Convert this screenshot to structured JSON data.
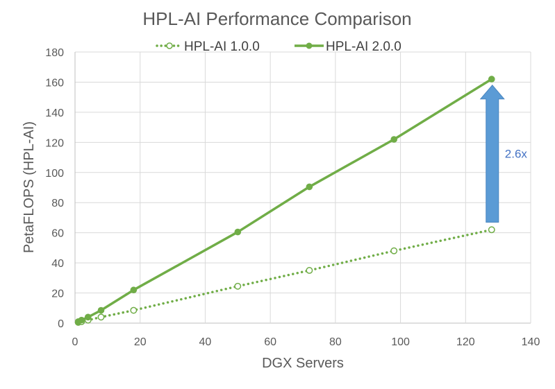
{
  "chart_data": {
    "type": "line",
    "title": "HPL-AI Performance Comparison",
    "xlabel": "DGX Servers",
    "ylabel": "PetaFLOPS (HPL-AI)",
    "xlim": [
      0,
      140
    ],
    "ylim": [
      0,
      180
    ],
    "xticks": [
      0,
      20,
      40,
      60,
      80,
      100,
      120,
      140
    ],
    "yticks": [
      0,
      20,
      40,
      60,
      80,
      100,
      120,
      140,
      160,
      180
    ],
    "grid": true,
    "legend_position": "top",
    "series": [
      {
        "name": "HPL-AI 1.0.0",
        "style": "dotted",
        "marker": "open-circle",
        "color": "#70ad47",
        "points": [
          {
            "x": 1,
            "y": 0.5
          },
          {
            "x": 2,
            "y": 1
          },
          {
            "x": 4,
            "y": 2
          },
          {
            "x": 8,
            "y": 4
          },
          {
            "x": 18,
            "y": 8.5
          },
          {
            "x": 50,
            "y": 24.5
          },
          {
            "x": 72,
            "y": 35
          },
          {
            "x": 98,
            "y": 48
          },
          {
            "x": 128,
            "y": 62
          }
        ]
      },
      {
        "name": "HPL-AI 2.0.0",
        "style": "solid",
        "marker": "filled-circle",
        "color": "#70ad47",
        "points": [
          {
            "x": 1,
            "y": 1
          },
          {
            "x": 2,
            "y": 2
          },
          {
            "x": 4,
            "y": 4
          },
          {
            "x": 8,
            "y": 8.5
          },
          {
            "x": 18,
            "y": 22
          },
          {
            "x": 50,
            "y": 60.5
          },
          {
            "x": 72,
            "y": 90.5
          },
          {
            "x": 98,
            "y": 122
          },
          {
            "x": 128,
            "y": 162
          }
        ]
      }
    ],
    "annotation": {
      "text": "2.6x",
      "arrow_x": 128,
      "arrow_y_from": 67,
      "arrow_y_to": 158,
      "color": "#5b9bd5"
    }
  }
}
